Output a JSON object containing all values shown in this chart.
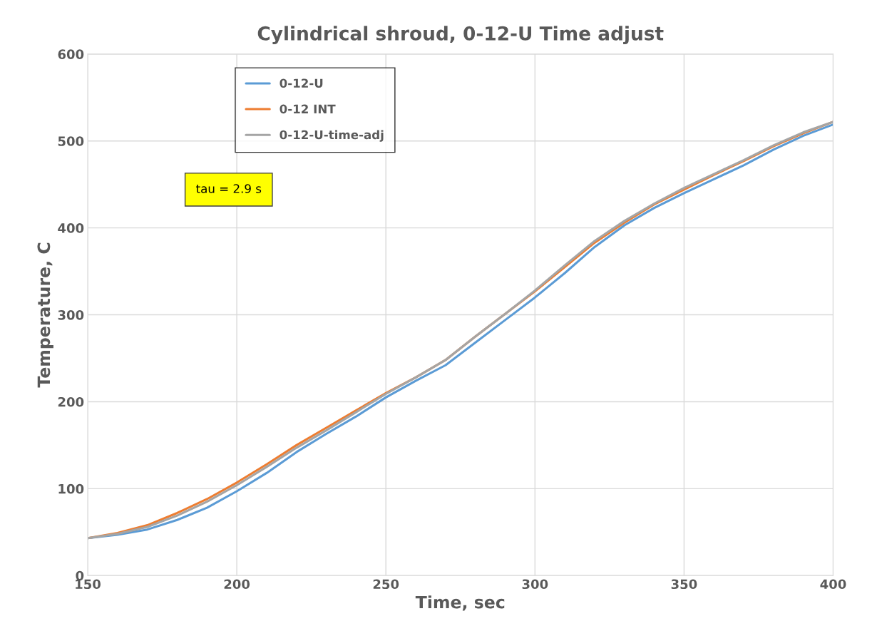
{
  "chart_data": {
    "type": "line",
    "title": "Cylindrical shroud, 0-12-U Time adjust",
    "xlabel": "Time, sec",
    "ylabel": "Temperature, C",
    "x": [
      150,
      160,
      170,
      180,
      190,
      200,
      210,
      220,
      230,
      240,
      250,
      260,
      270,
      280,
      290,
      300,
      310,
      320,
      330,
      340,
      350,
      360,
      370,
      380,
      390,
      400
    ],
    "series": [
      {
        "name": "0-12-U",
        "color": "#5b9bd5",
        "values": [
          43,
          47,
          53,
          64,
          78,
          97,
          118,
          142,
          163,
          183,
          205,
          224,
          242,
          268,
          294,
          320,
          348,
          378,
          403,
          423,
          440,
          456,
          472,
          490,
          506,
          519
        ]
      },
      {
        "name": "0-12 INT",
        "color": "#ed7d31",
        "values": [
          43,
          49,
          58,
          72,
          88,
          107,
          128,
          150,
          170,
          190,
          210,
          228,
          248,
          275,
          301,
          327,
          355,
          383,
          406,
          427,
          444,
          461,
          477,
          494,
          509,
          522
        ]
      },
      {
        "name": "0-12-U-time-adj",
        "color": "#a5a5a5",
        "values": [
          43,
          48,
          56,
          69,
          85,
          104,
          125,
          147,
          167,
          188,
          209,
          228,
          248,
          275,
          301,
          328,
          357,
          385,
          408,
          428,
          446,
          462,
          478,
          495,
          510,
          522
        ]
      }
    ],
    "xlim": [
      150,
      400
    ],
    "xticks": [
      150,
      200,
      250,
      300,
      350,
      400
    ],
    "ylim": [
      0,
      600
    ],
    "yticks": [
      0,
      100,
      200,
      300,
      400,
      500,
      600
    ],
    "grid": true,
    "legend": "top left",
    "marker": "none",
    "line_style": "solid",
    "annotations": [
      "tau = 2.9 s"
    ]
  }
}
